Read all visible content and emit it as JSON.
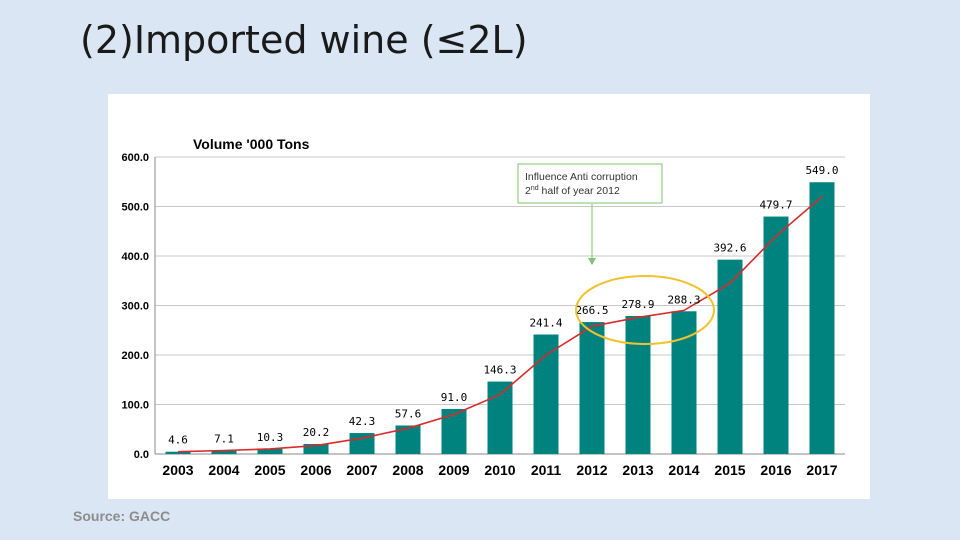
{
  "slide": {
    "title": "(2)Imported wine (≤2L)",
    "source": "Source: GACC"
  },
  "colors": {
    "background": "#dbe6f4",
    "bar": "#00827f",
    "line": "#d92b2b",
    "highlight_ellipse": "#f2c12e",
    "annotation_border": "#7dc46e",
    "annotation_arrow": "#7dc46e"
  },
  "annotation": {
    "line1": "Influence Anti corruption",
    "line2_prefix": "2",
    "line2_sup": "nd",
    "line2_suffix": " half of year 2012"
  },
  "chart_data": {
    "type": "bar",
    "title": "Volume '000 Tons",
    "categories": [
      "2003",
      "2004",
      "2005",
      "2006",
      "2007",
      "2008",
      "2009",
      "2010",
      "2011",
      "2012",
      "2013",
      "2014",
      "2015",
      "2016",
      "2017"
    ],
    "series": [
      {
        "values": [
          4.6,
          7.1,
          10.3,
          20.2,
          42.3,
          57.6,
          91.0,
          146.3,
          241.4,
          266.5,
          278.9,
          288.3,
          392.6,
          479.7,
          549.0
        ]
      }
    ],
    "data_labels": [
      "4.6",
      "7.1",
      "10.3",
      "20.2",
      "42.3",
      "57.6",
      "91.0",
      "146.3",
      "241.4",
      "266.5",
      "278.9",
      "288.3",
      "392.6",
      "479.7",
      "549.0"
    ],
    "trend_line": {
      "type": "line",
      "values": [
        4.6,
        7.1,
        10.3,
        17,
        32,
        52,
        80,
        120,
        200,
        258,
        276,
        290,
        345,
        440,
        520
      ]
    },
    "yticks": [
      "0.0",
      "100.0",
      "200.0",
      "300.0",
      "400.0",
      "500.0",
      "600.0"
    ],
    "ylim": [
      0,
      600
    ],
    "grid": true,
    "legend": "none"
  }
}
